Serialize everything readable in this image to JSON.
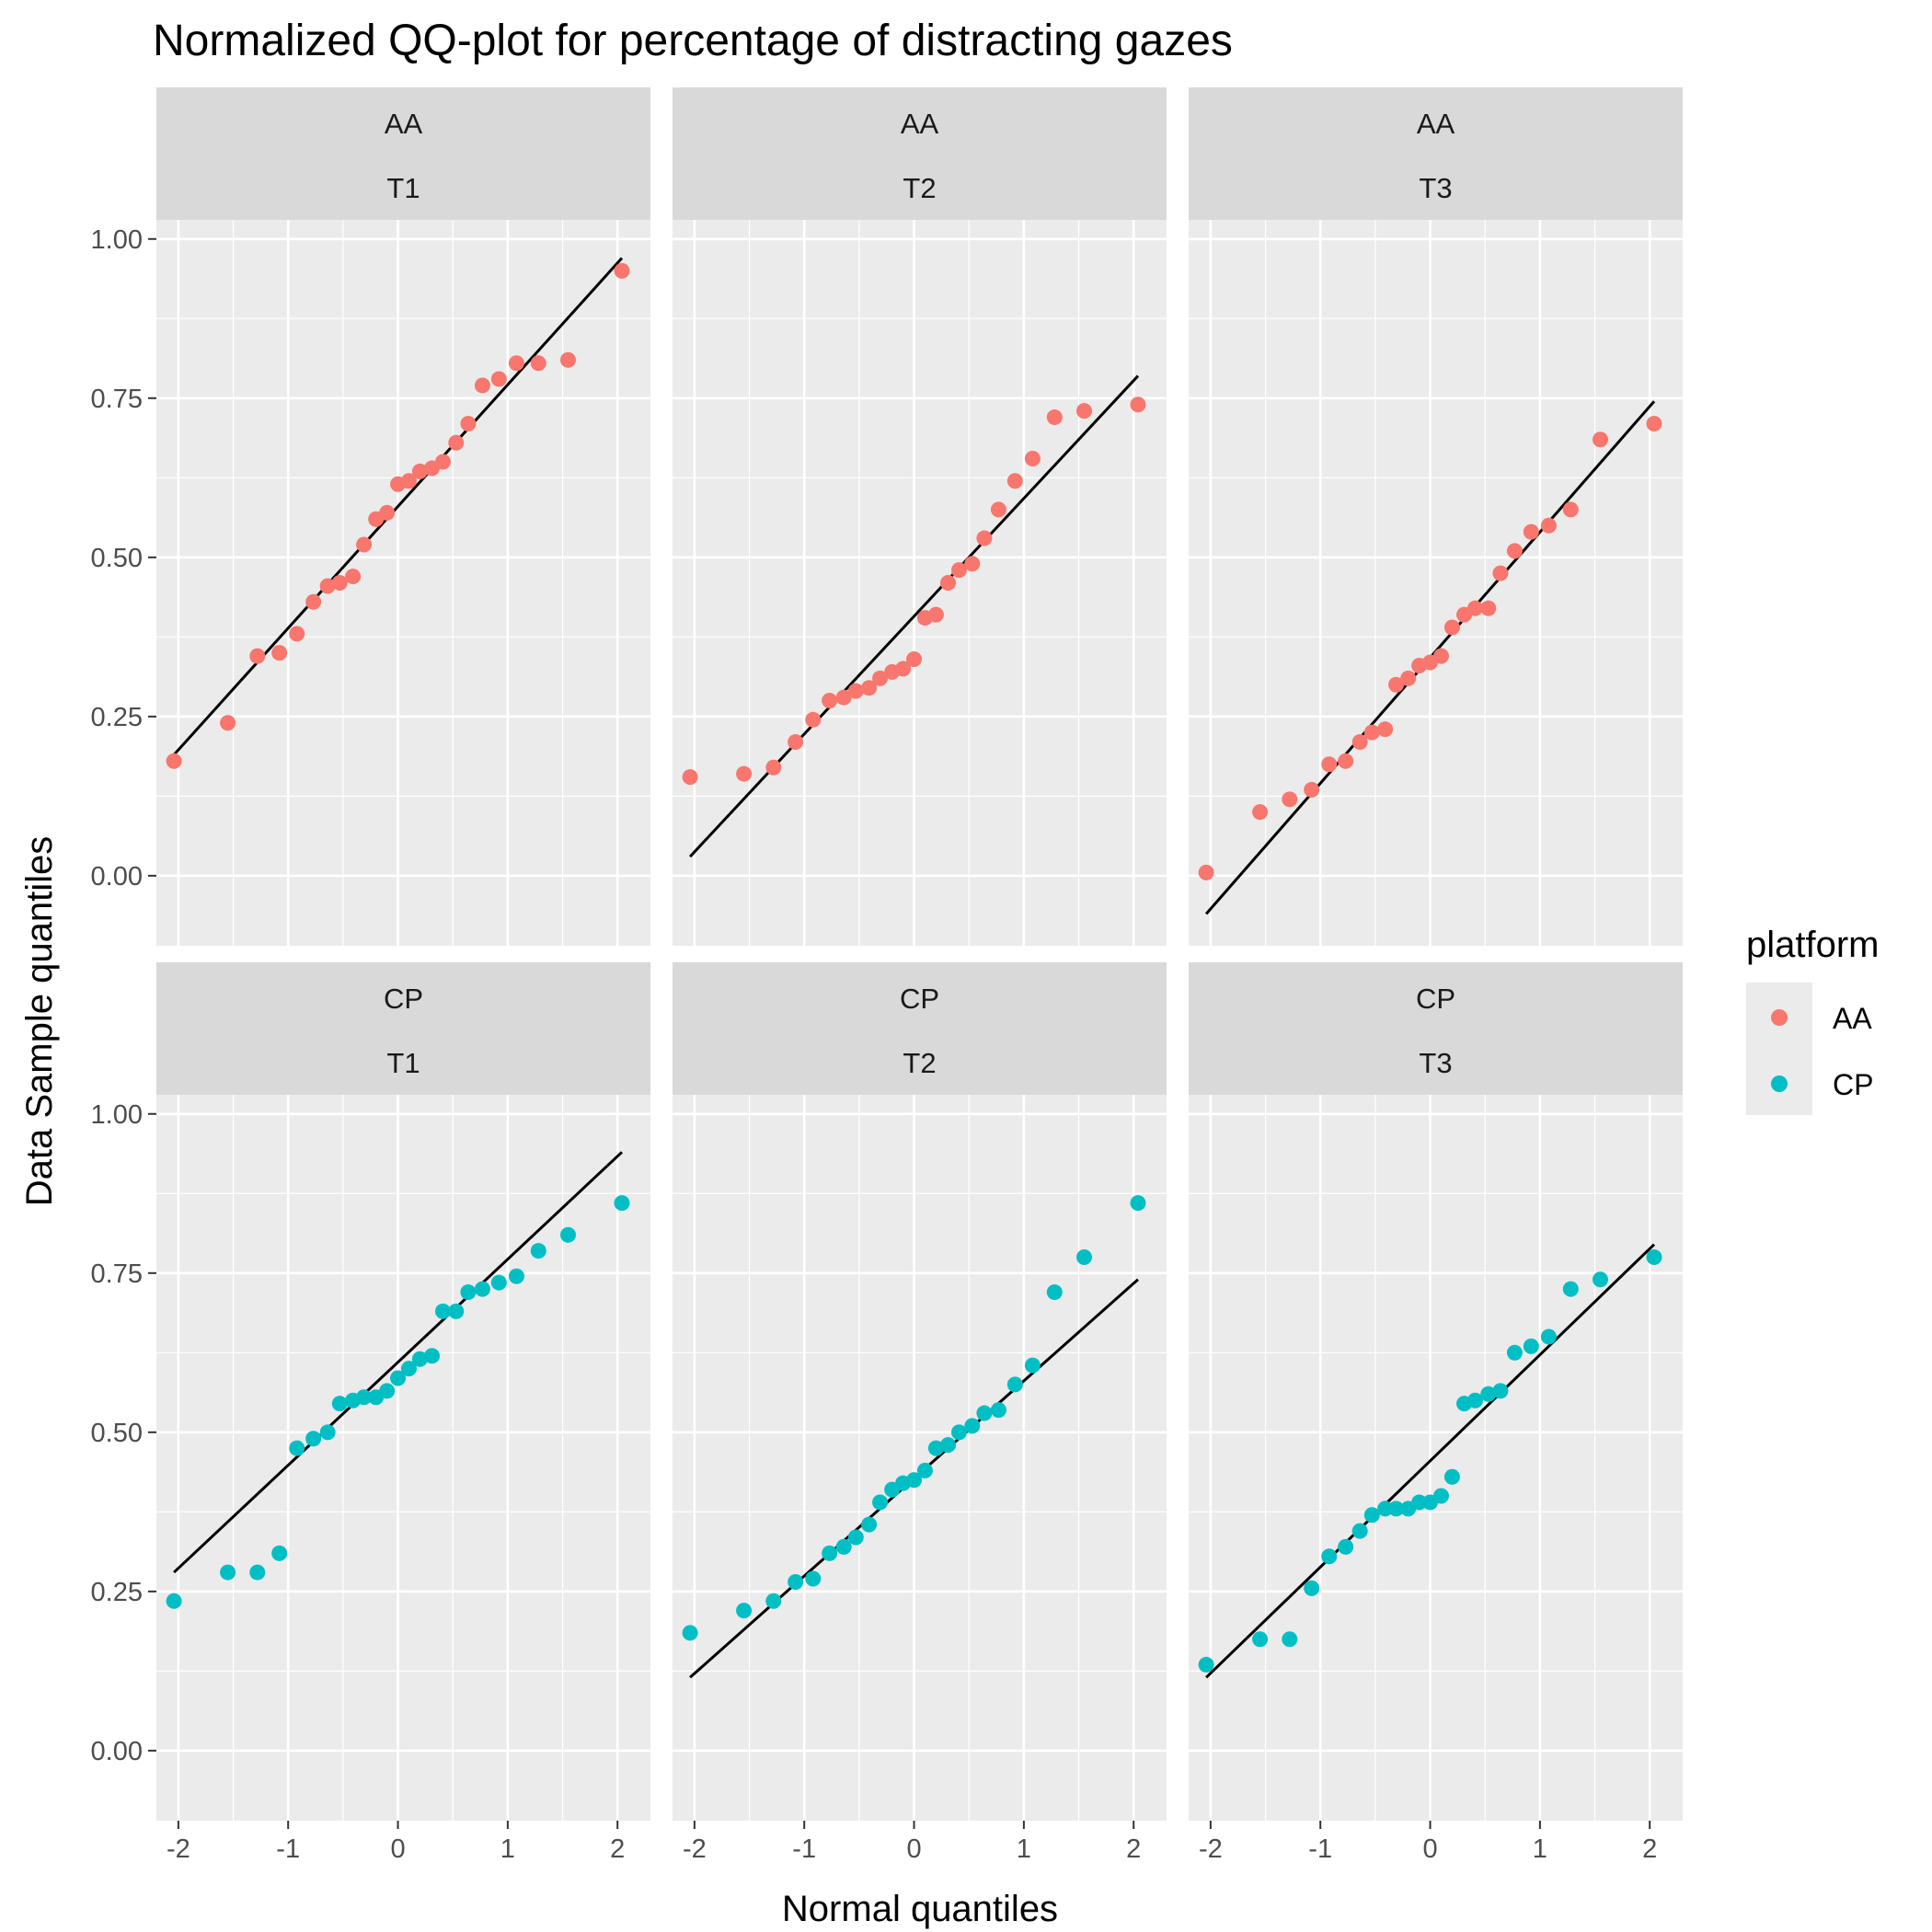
{
  "chart_data": {
    "type": "scatter",
    "title": "Normalized QQ-plot for percentage of distracting gazes",
    "xlabel": "Normal quantiles",
    "ylabel": "Data Sample quantiles",
    "xlim": [
      -2.2,
      2.3
    ],
    "ylim": [
      -0.11,
      1.03
    ],
    "x_ticks": [
      -2,
      -1,
      0,
      1,
      2
    ],
    "y_ticks": [
      0.0,
      0.25,
      0.5,
      0.75,
      1.0
    ],
    "y_tick_labels": [
      "0.00",
      "0.25",
      "0.50",
      "0.75",
      "1.00"
    ],
    "grid": true,
    "legend": {
      "title": "platform",
      "position": "right",
      "entries": [
        {
          "name": "AA",
          "color": "#F8766D"
        },
        {
          "name": "CP",
          "color": "#00BFC4"
        }
      ]
    },
    "theoretical_quantiles": [
      -2.04,
      -1.55,
      -1.28,
      -1.08,
      -0.92,
      -0.77,
      -0.64,
      -0.53,
      -0.41,
      -0.31,
      -0.2,
      -0.1,
      0.0,
      0.1,
      0.2,
      0.31,
      0.41,
      0.53,
      0.64,
      0.77,
      0.92,
      1.08,
      1.28,
      1.55,
      2.04
    ],
    "panels": [
      {
        "row_label": "AA",
        "col_label": "T1",
        "series": "AA",
        "line": [
          [
            -2.04,
            0.19
          ],
          [
            2.04,
            0.97
          ]
        ],
        "values": [
          0.18,
          0.24,
          0.345,
          0.35,
          0.38,
          0.43,
          0.455,
          0.46,
          0.47,
          0.52,
          0.56,
          0.57,
          0.615,
          0.62,
          0.635,
          0.64,
          0.65,
          0.68,
          0.71,
          0.77,
          0.78,
          0.805,
          0.805,
          0.81,
          0.95
        ]
      },
      {
        "row_label": "AA",
        "col_label": "T2",
        "series": "AA",
        "line": [
          [
            -2.04,
            0.03
          ],
          [
            2.04,
            0.785
          ]
        ],
        "values": [
          0.155,
          0.16,
          0.17,
          0.21,
          0.245,
          0.275,
          0.28,
          0.29,
          0.295,
          0.31,
          0.32,
          0.325,
          0.34,
          0.405,
          0.41,
          0.46,
          0.48,
          0.49,
          0.53,
          0.575,
          0.62,
          0.655,
          0.72,
          0.73,
          0.74
        ]
      },
      {
        "row_label": "AA",
        "col_label": "T3",
        "series": "AA",
        "line": [
          [
            -2.04,
            -0.06
          ],
          [
            2.04,
            0.745
          ]
        ],
        "values": [
          0.005,
          0.1,
          0.12,
          0.135,
          0.175,
          0.18,
          0.21,
          0.225,
          0.23,
          0.3,
          0.31,
          0.33,
          0.335,
          0.345,
          0.39,
          0.41,
          0.42,
          0.42,
          0.475,
          0.51,
          0.54,
          0.55,
          0.575,
          0.685,
          0.71
        ]
      },
      {
        "row_label": "CP",
        "col_label": "T1",
        "series": "CP",
        "line": [
          [
            -2.04,
            0.28
          ],
          [
            2.04,
            0.94
          ]
        ],
        "values": [
          0.235,
          0.28,
          0.28,
          0.31,
          0.475,
          0.49,
          0.5,
          0.545,
          0.55,
          0.555,
          0.555,
          0.565,
          0.585,
          0.6,
          0.615,
          0.62,
          0.69,
          0.69,
          0.72,
          0.725,
          0.735,
          0.745,
          0.785,
          0.81,
          0.86
        ]
      },
      {
        "row_label": "CP",
        "col_label": "T2",
        "series": "CP",
        "line": [
          [
            -2.04,
            0.115
          ],
          [
            2.04,
            0.74
          ]
        ],
        "values": [
          0.185,
          0.22,
          0.235,
          0.265,
          0.27,
          0.31,
          0.32,
          0.335,
          0.355,
          0.39,
          0.41,
          0.42,
          0.425,
          0.44,
          0.475,
          0.48,
          0.5,
          0.51,
          0.53,
          0.535,
          0.575,
          0.605,
          0.72,
          0.775,
          0.86
        ]
      },
      {
        "row_label": "CP",
        "col_label": "T3",
        "series": "CP",
        "line": [
          [
            -2.04,
            0.115
          ],
          [
            2.04,
            0.795
          ]
        ],
        "values": [
          0.135,
          0.175,
          0.175,
          0.255,
          0.305,
          0.32,
          0.345,
          0.37,
          0.38,
          0.38,
          0.38,
          0.39,
          0.39,
          0.4,
          0.43,
          0.545,
          0.55,
          0.56,
          0.565,
          0.625,
          0.635,
          0.65,
          0.725,
          0.74,
          0.775
        ]
      }
    ]
  }
}
